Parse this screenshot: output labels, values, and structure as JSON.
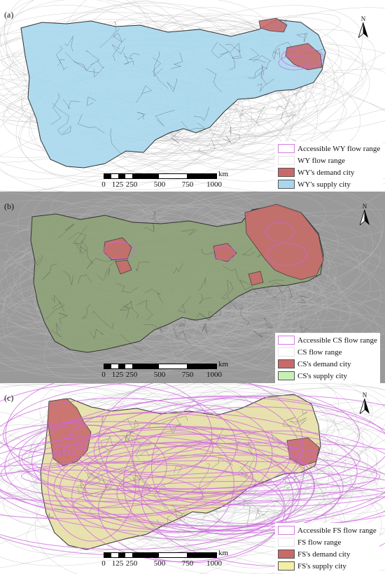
{
  "panels": [
    {
      "id": "a",
      "label": "(a)",
      "north": "N",
      "legend": [
        {
          "text": "Accessible WY flow range",
          "swatch": "outline",
          "color": "#d47ce0"
        },
        {
          "text": "WY flow range",
          "swatch": "outline",
          "color": "#e3e3e3"
        },
        {
          "text": "WY's demand city",
          "swatch": "fill",
          "color": "#c86a6a"
        },
        {
          "text": "WY's supply city",
          "swatch": "fill",
          "color": "#a9d8ee"
        }
      ],
      "scale": {
        "unit": "km",
        "ticks": [
          "0",
          "125",
          "250",
          "500",
          "750",
          "1000"
        ]
      }
    },
    {
      "id": "b",
      "label": "(b)",
      "north": "N",
      "legend": [
        {
          "text": "Accessible CS flow range",
          "swatch": "outline",
          "color": "#d47ce0"
        },
        {
          "text": "CS flow range",
          "swatch": "outline",
          "color": "#e3e3e3"
        },
        {
          "text": "CS's demand city",
          "swatch": "fill",
          "color": "#c86a6a"
        },
        {
          "text": "CS's supply city",
          "swatch": "fill",
          "color": "#c6f0b6"
        }
      ],
      "scale": {
        "unit": "km",
        "ticks": [
          "0",
          "125",
          "250",
          "500",
          "750",
          "1000"
        ]
      }
    },
    {
      "id": "c",
      "label": "(c)",
      "north": "N",
      "legend": [
        {
          "text": "Accessible FS flow range",
          "swatch": "outline",
          "color": "#d47ce0"
        },
        {
          "text": "FS flow range",
          "swatch": "outline",
          "color": "#e3e3e3"
        },
        {
          "text": "FS's demand city",
          "swatch": "fill",
          "color": "#c86a6a"
        },
        {
          "text": "FS's supply city",
          "swatch": "fill",
          "color": "#f3efa3"
        }
      ],
      "scale": {
        "unit": "km",
        "ticks": [
          "0",
          "125",
          "250",
          "500",
          "750",
          "1000"
        ]
      }
    }
  ],
  "colors": {
    "region_outline": "#333333",
    "flow_line": "#bdbdbd",
    "accessible_flow": "#cc66dd",
    "a_supply": "#a9d8ee",
    "b_supply": "#8fa37a",
    "c_supply": "#e6e0a8",
    "demand": "#c86a6a"
  }
}
